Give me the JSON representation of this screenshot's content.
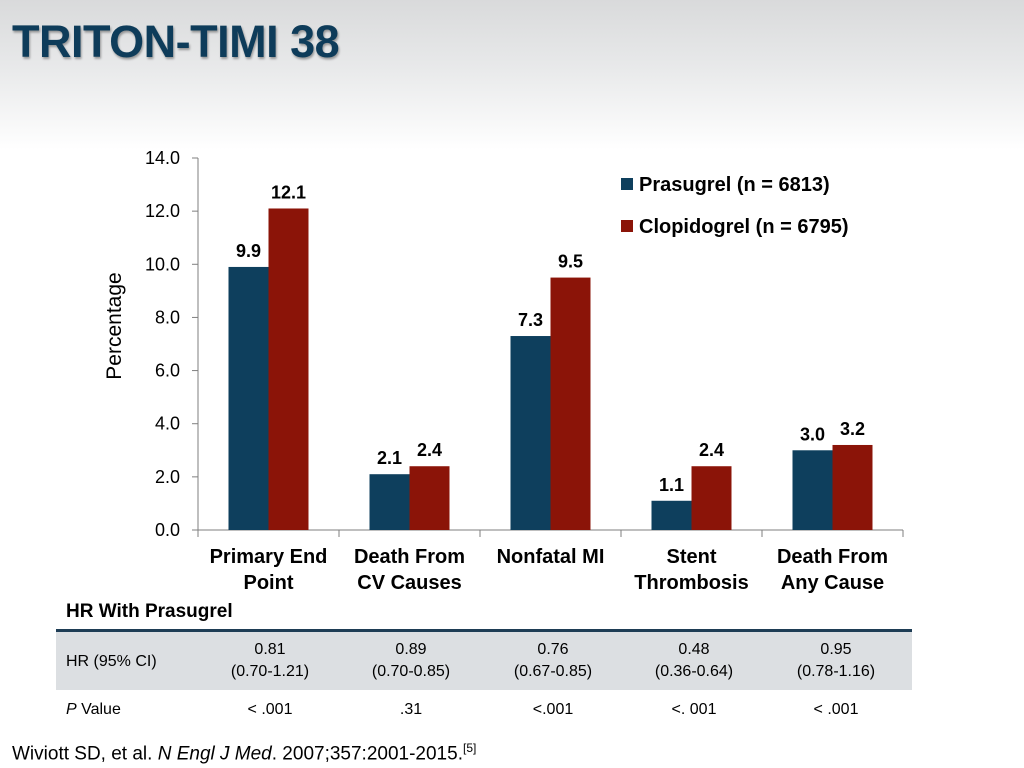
{
  "title": "TRITON-TIMI 38",
  "chart_data": {
    "type": "bar",
    "categories": [
      [
        "Primary End",
        "Point"
      ],
      [
        "Death From",
        "CV Causes"
      ],
      [
        "Nonfatal MI"
      ],
      [
        "Stent",
        "Thrombosis"
      ],
      [
        "Death From",
        "Any Cause"
      ]
    ],
    "series": [
      {
        "name": "Prasugrel (n = 6813)",
        "color": "#0e3f5d",
        "values": [
          9.9,
          2.1,
          7.3,
          1.1,
          3.0
        ],
        "labels": [
          "9.9",
          "2.1",
          "7.3",
          "1.1",
          "3.0"
        ]
      },
      {
        "name": "Clopidogrel (n = 6795)",
        "color": "#8b1408",
        "values": [
          12.1,
          2.4,
          9.5,
          2.4,
          3.2
        ],
        "labels": [
          "12.1",
          "2.4",
          "9.5",
          "2.4",
          "3.2"
        ]
      }
    ],
    "ylabel": "Percentage",
    "ylim": [
      0,
      14
    ],
    "yticks": [
      "0.0",
      "2.0",
      "4.0",
      "6.0",
      "8.0",
      "10.0",
      "12.0",
      "14.0"
    ],
    "grid": false,
    "legend": "top-right"
  },
  "hr_table": {
    "heading": "HR With Prasugrel",
    "hr_label": "HR (95% CI)",
    "p_label_italic": "P",
    "p_label_rest": " Value",
    "hr_values": [
      [
        "0.81",
        "(0.70-1.21)"
      ],
      [
        "0.89",
        "(0.70-0.85)"
      ],
      [
        "0.76",
        "(0.67-0.85)"
      ],
      [
        "0.48",
        "(0.36-0.64)"
      ],
      [
        "0.95",
        "(0.78-1.16)"
      ]
    ],
    "p_values": [
      "< .001",
      ".31",
      "<.001",
      "<. 001",
      "< .001"
    ]
  },
  "citation": {
    "authors": "Wiviott SD, et al. ",
    "journal": "N Engl J Med",
    "details": ". 2007;357:2001-2015.",
    "ref": "[5]"
  }
}
